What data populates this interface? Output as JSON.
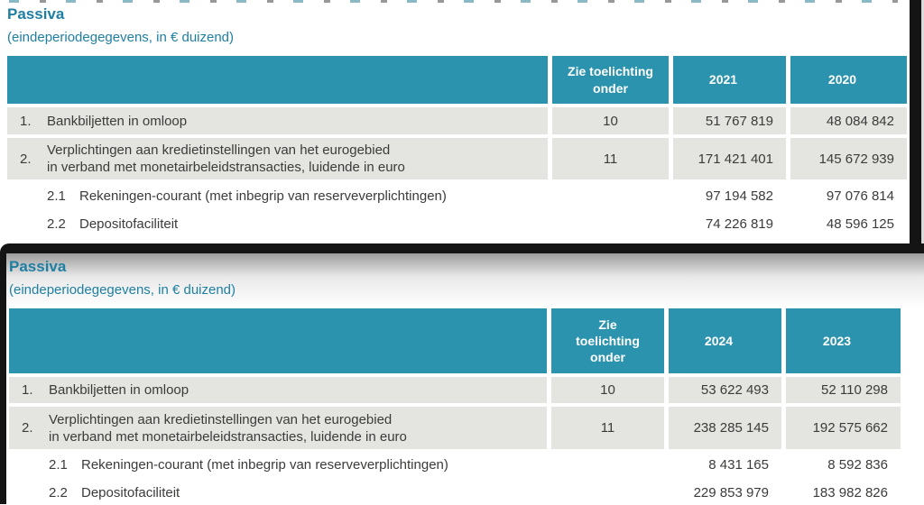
{
  "colors": {
    "teal_header": "#2c93ae",
    "teal_title": "#1e7fa2",
    "row_shaded": "#e4e4e1",
    "text": "#3b3b3a",
    "frame_black": "#141414"
  },
  "tables": [
    {
      "title": "Passiva",
      "subtitle": "(eindeperiodegegevens, in € duizend)",
      "note_header": "Zie toelichting onder",
      "year1": "2021",
      "year2": "2020",
      "rows": [
        {
          "num": "1.",
          "label": "Bankbiljetten in omloop",
          "note": "10",
          "v1": "51 767 819",
          "v2": "48 084 842",
          "shaded": true,
          "sub": false
        },
        {
          "num": "2.",
          "label": "Verplichtingen aan kredietinstellingen van het eurogebied\nin verband met monetairbeleidstransacties, luidende in euro",
          "note": "11",
          "v1": "171 421 401",
          "v2": "145 672 939",
          "shaded": true,
          "sub": false
        },
        {
          "num": "2.1",
          "label": "Rekeningen-courant (met inbegrip van reserveverplichtingen)",
          "note": "",
          "v1": "97 194 582",
          "v2": "97 076 814",
          "shaded": false,
          "sub": true
        },
        {
          "num": "2.2",
          "label": "Depositofaciliteit",
          "note": "",
          "v1": "74 226 819",
          "v2": "48 596 125",
          "shaded": false,
          "sub": true
        }
      ]
    },
    {
      "title": "Passiva",
      "subtitle": "(eindeperiodegegevens, in € duizend)",
      "note_header": "Zie toelichting onder",
      "year1": "2024",
      "year2": "2023",
      "rows": [
        {
          "num": "1.",
          "label": "Bankbiljetten in omloop",
          "note": "10",
          "v1": "53 622 493",
          "v2": "52 110 298",
          "shaded": true,
          "sub": false
        },
        {
          "num": "2.",
          "label": "Verplichtingen aan kredietinstellingen van het eurogebied\nin verband met monetairbeleidstransacties, luidende in euro",
          "note": "11",
          "v1": "238 285 145",
          "v2": "192 575 662",
          "shaded": true,
          "sub": false
        },
        {
          "num": "2.1",
          "label": "Rekeningen-courant (met inbegrip van reserveverplichtingen)",
          "note": "",
          "v1": "8 431 165",
          "v2": "8 592 836",
          "shaded": false,
          "sub": true
        },
        {
          "num": "2.2",
          "label": "Depositofaciliteit",
          "note": "",
          "v1": "229 853 979",
          "v2": "183 982 826",
          "shaded": false,
          "sub": true
        }
      ]
    }
  ]
}
